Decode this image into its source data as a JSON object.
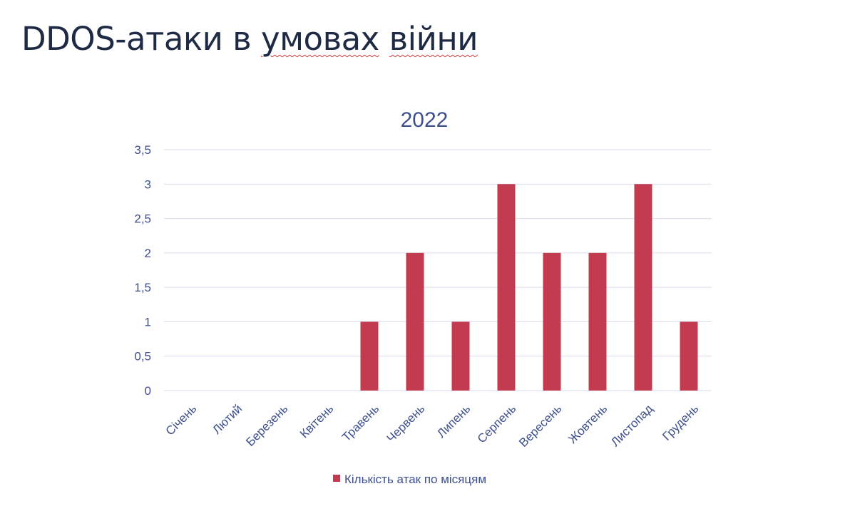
{
  "slide": {
    "title_part1": "DDOS-атаки в ",
    "title_part2": "умовах",
    "title_part3": " ",
    "title_part4": "війни"
  },
  "chart_data": {
    "type": "bar",
    "title": "2022",
    "categories": [
      "Січень",
      "Лютий",
      "Березень",
      "Квітень",
      "Травень",
      "Червень",
      "Липень",
      "Серпень",
      "Вересень",
      "Жовтень",
      "Листопад",
      "Грудень"
    ],
    "series": [
      {
        "name": "Кількість атак по місяцям",
        "values": [
          0,
          0,
          0,
          0,
          1,
          2,
          1,
          3,
          2,
          2,
          3,
          1
        ],
        "color": "#c33b4f"
      }
    ],
    "y_ticks": [
      "0",
      "0,5",
      "1",
      "1,5",
      "2",
      "2,5",
      "3",
      "3,5"
    ],
    "ylim": [
      0,
      3.5
    ],
    "xlabel": "",
    "ylabel": "",
    "grid": true,
    "legend_position": "bottom",
    "colors": {
      "grid": "#d9dced",
      "text": "#3d4f8c"
    }
  }
}
